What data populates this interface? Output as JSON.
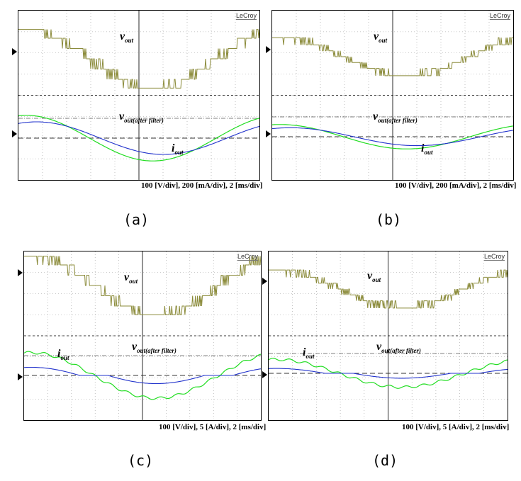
{
  "panels": [
    {
      "id": "a",
      "brand": "LeCroy",
      "info": "100 [V/div], 200 [mA/div], 2 [ms/div]",
      "caption": "(a)",
      "vout_label": "v",
      "vout_sub": "out",
      "vfilt_label": "v",
      "vfilt_sub": "out(after filter)",
      "iout_label": "i",
      "iout_sub": "out"
    },
    {
      "id": "b",
      "brand": "LeCroy",
      "info": "100 [V/div], 200 [mA/div], 2 [ms/div]",
      "caption": "(b)",
      "vout_label": "v",
      "vout_sub": "out",
      "vfilt_label": "v",
      "vfilt_sub": "out(after filter)",
      "iout_label": "i",
      "iout_sub": "out"
    },
    {
      "id": "c",
      "brand": "LeCroy",
      "info": "100 [V/div], 5 [A/div], 2 [ms/div]",
      "caption": "(c)",
      "vout_label": "v",
      "vout_sub": "out",
      "vfilt_label": "v",
      "vfilt_sub": "out(after filter)",
      "iout_label": "i",
      "iout_sub": "out"
    },
    {
      "id": "d",
      "brand": "LeCroy",
      "info": "100 [V/div], 5 [A/div], 2 [ms/div]",
      "caption": "(d)",
      "vout_label": "v",
      "vout_sub": "out",
      "vfilt_label": "v",
      "vfilt_sub": "out(after filter)",
      "iout_label": "i",
      "iout_sub": "out"
    }
  ],
  "colors": {
    "vout": "#8b8b3a",
    "vout_filtered": "#22dd22",
    "iout": "#2233cc",
    "grid": "#999999"
  },
  "chart_data": [
    {
      "type": "line",
      "panel": "a",
      "x_divisions": 10,
      "grid": true,
      "series": [
        {
          "name": "vout",
          "kind": "multilevel-staircase",
          "levels": [
            2.0,
            1.4,
            0.7,
            0.0,
            -0.7,
            -1.4,
            -2.0
          ],
          "phase_deg": 0
        },
        {
          "name": "vout(after filter)",
          "amplitude_div": 1.4,
          "phase_deg": 0
        },
        {
          "name": "iout",
          "amplitude_div": 1.0,
          "phase_deg": -15
        }
      ]
    },
    {
      "type": "line",
      "panel": "b",
      "x_divisions": 10,
      "grid": true,
      "series": [
        {
          "name": "vout",
          "kind": "multilevel-staircase",
          "levels": [
            1.3,
            0.8,
            0.4,
            0.0,
            -0.4,
            -0.8,
            -1.3
          ],
          "phase_deg": 0
        },
        {
          "name": "vout(after filter)",
          "amplitude_div": 0.75,
          "phase_deg": 0
        },
        {
          "name": "iout",
          "amplitude_div": 0.55,
          "phase_deg": -15
        }
      ]
    },
    {
      "type": "line",
      "panel": "c",
      "x_divisions": 10,
      "grid": true,
      "series": [
        {
          "name": "vout",
          "kind": "multilevel-staircase",
          "levels": [
            2.0,
            1.4,
            0.7,
            0.0,
            -0.7,
            -1.4,
            -2.0
          ],
          "phase_deg": 0
        },
        {
          "name": "vout(after filter)",
          "amplitude_div": 1.4,
          "phase_deg": 0
        },
        {
          "name": "iout",
          "amplitude_div": 0.5,
          "phase_deg": 0,
          "kind": "dead-zone"
        }
      ]
    },
    {
      "type": "line",
      "panel": "d",
      "x_divisions": 10,
      "grid": true,
      "series": [
        {
          "name": "vout",
          "kind": "multilevel-staircase",
          "levels": [
            1.3,
            0.8,
            0.4,
            0.0,
            -0.4,
            -0.8,
            -1.3
          ],
          "phase_deg": 0
        },
        {
          "name": "vout(after filter)",
          "amplitude_div": 0.85,
          "phase_deg": 0
        },
        {
          "name": "iout",
          "amplitude_div": 0.3,
          "phase_deg": 0,
          "kind": "dead-zone"
        }
      ]
    }
  ]
}
